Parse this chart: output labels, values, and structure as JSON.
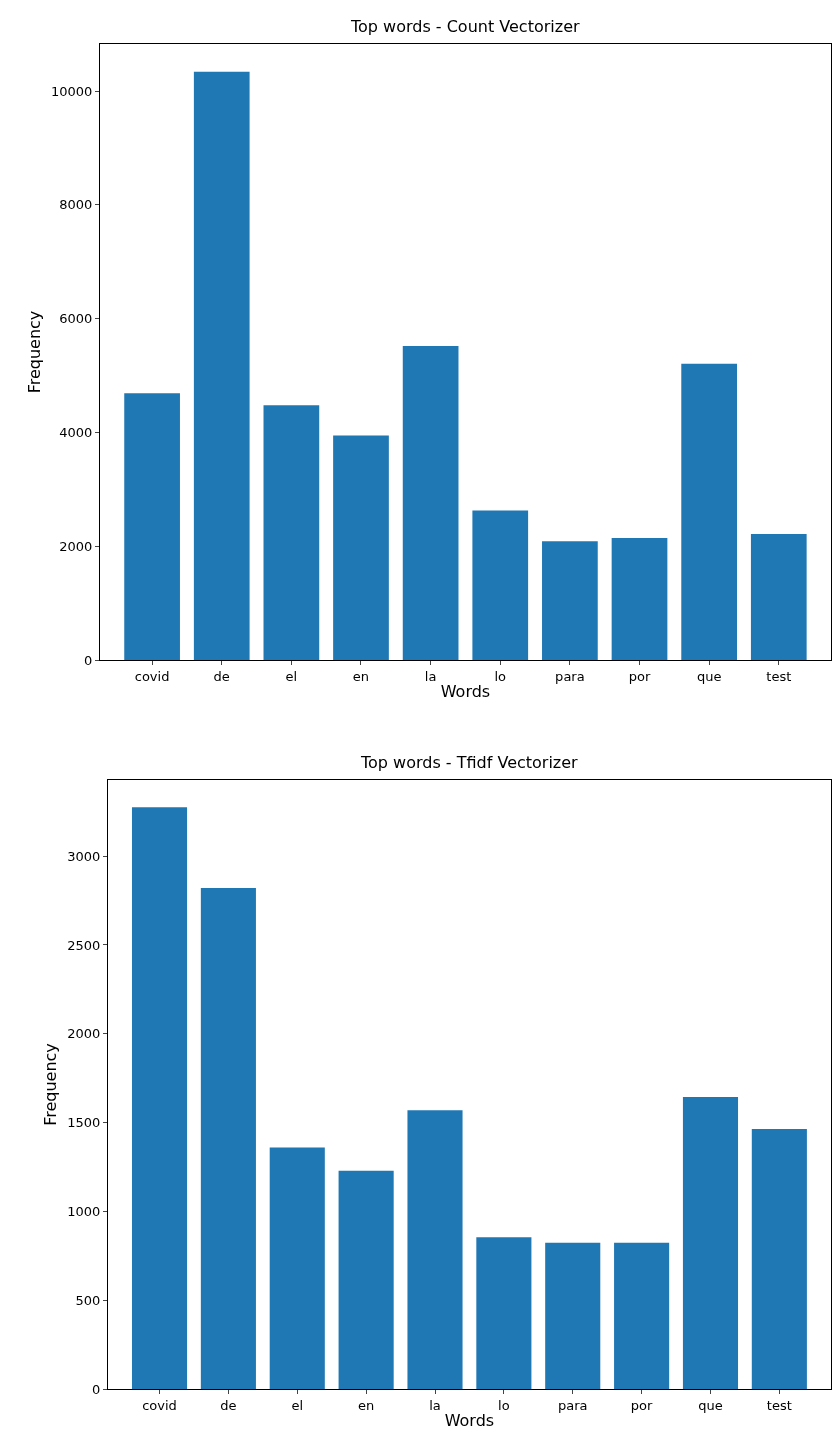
{
  "chart_data": [
    {
      "type": "bar",
      "title": "Top words - Count Vectorizer",
      "xlabel": "Words",
      "ylabel": "Frequency",
      "categories": [
        "covid",
        "de",
        "el",
        "en",
        "la",
        "lo",
        "para",
        "por",
        "que",
        "test"
      ],
      "values": [
        4690,
        10340,
        4480,
        3950,
        5520,
        2630,
        2090,
        2150,
        5210,
        2220
      ],
      "color": "#1f77b4",
      "ylim": [
        0,
        10830
      ],
      "yticks": [
        0,
        2000,
        4000,
        6000,
        8000,
        10000
      ]
    },
    {
      "type": "bar",
      "title": "Top words - Tfidf Vectorizer",
      "xlabel": "Words",
      "ylabel": "Frequency",
      "categories": [
        "covid",
        "de",
        "el",
        "en",
        "la",
        "lo",
        "para",
        "por",
        "que",
        "test"
      ],
      "values": [
        3275,
        2820,
        1360,
        1230,
        1570,
        855,
        825,
        825,
        1645,
        1465
      ],
      "color": "#1f77b4",
      "ylim": [
        0,
        3430
      ],
      "yticks": [
        0,
        500,
        1000,
        1500,
        2000,
        2500,
        3000
      ]
    }
  ]
}
